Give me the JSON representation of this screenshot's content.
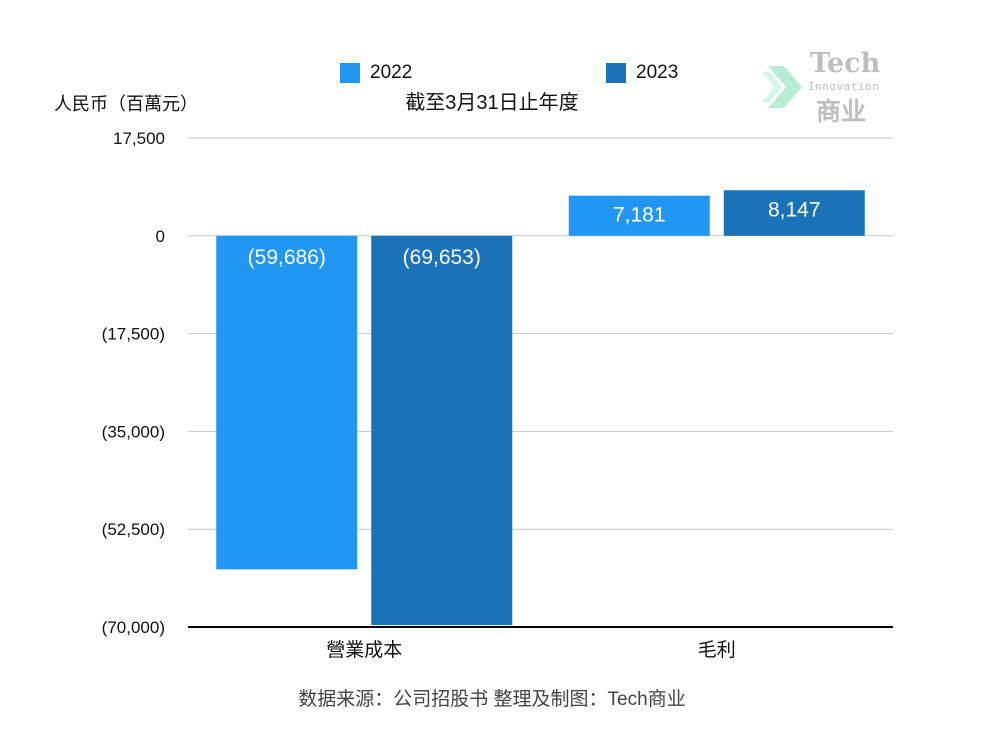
{
  "legend": [
    {
      "label": "2022",
      "color": "#2196f3"
    },
    {
      "label": "2023",
      "color": "#1a73b8"
    }
  ],
  "title": "截至3月31日止年度",
  "ylabel": "人民币（百萬元）",
  "source": "数据来源：公司招股书  整理及制图：Tech商业",
  "watermark": {
    "brand": "Tech",
    "sub": "Innovation",
    "cn": "商业"
  },
  "chart_data": {
    "type": "bar",
    "title": "截至3月31日止年度",
    "ylabel": "人民币（百萬元）",
    "xlabel": "",
    "categories": [
      "營業成本",
      "毛利"
    ],
    "series": [
      {
        "name": "2022",
        "values": [
          -59686,
          7181
        ],
        "labels": [
          "(59,686)",
          "7,181"
        ]
      },
      {
        "name": "2023",
        "values": [
          -69653,
          8147
        ],
        "labels": [
          "(69,653)",
          "8,147"
        ]
      }
    ],
    "ylim": [
      -70000,
      17500
    ],
    "yticks": [
      17500,
      0,
      -17500,
      -35000,
      -52500,
      -70000
    ],
    "ytick_labels": [
      "17,500",
      "0",
      "(17,500)",
      "(35,000)",
      "(52,500)",
      "(70,000)"
    ],
    "grid": true,
    "legend_position": "top"
  }
}
